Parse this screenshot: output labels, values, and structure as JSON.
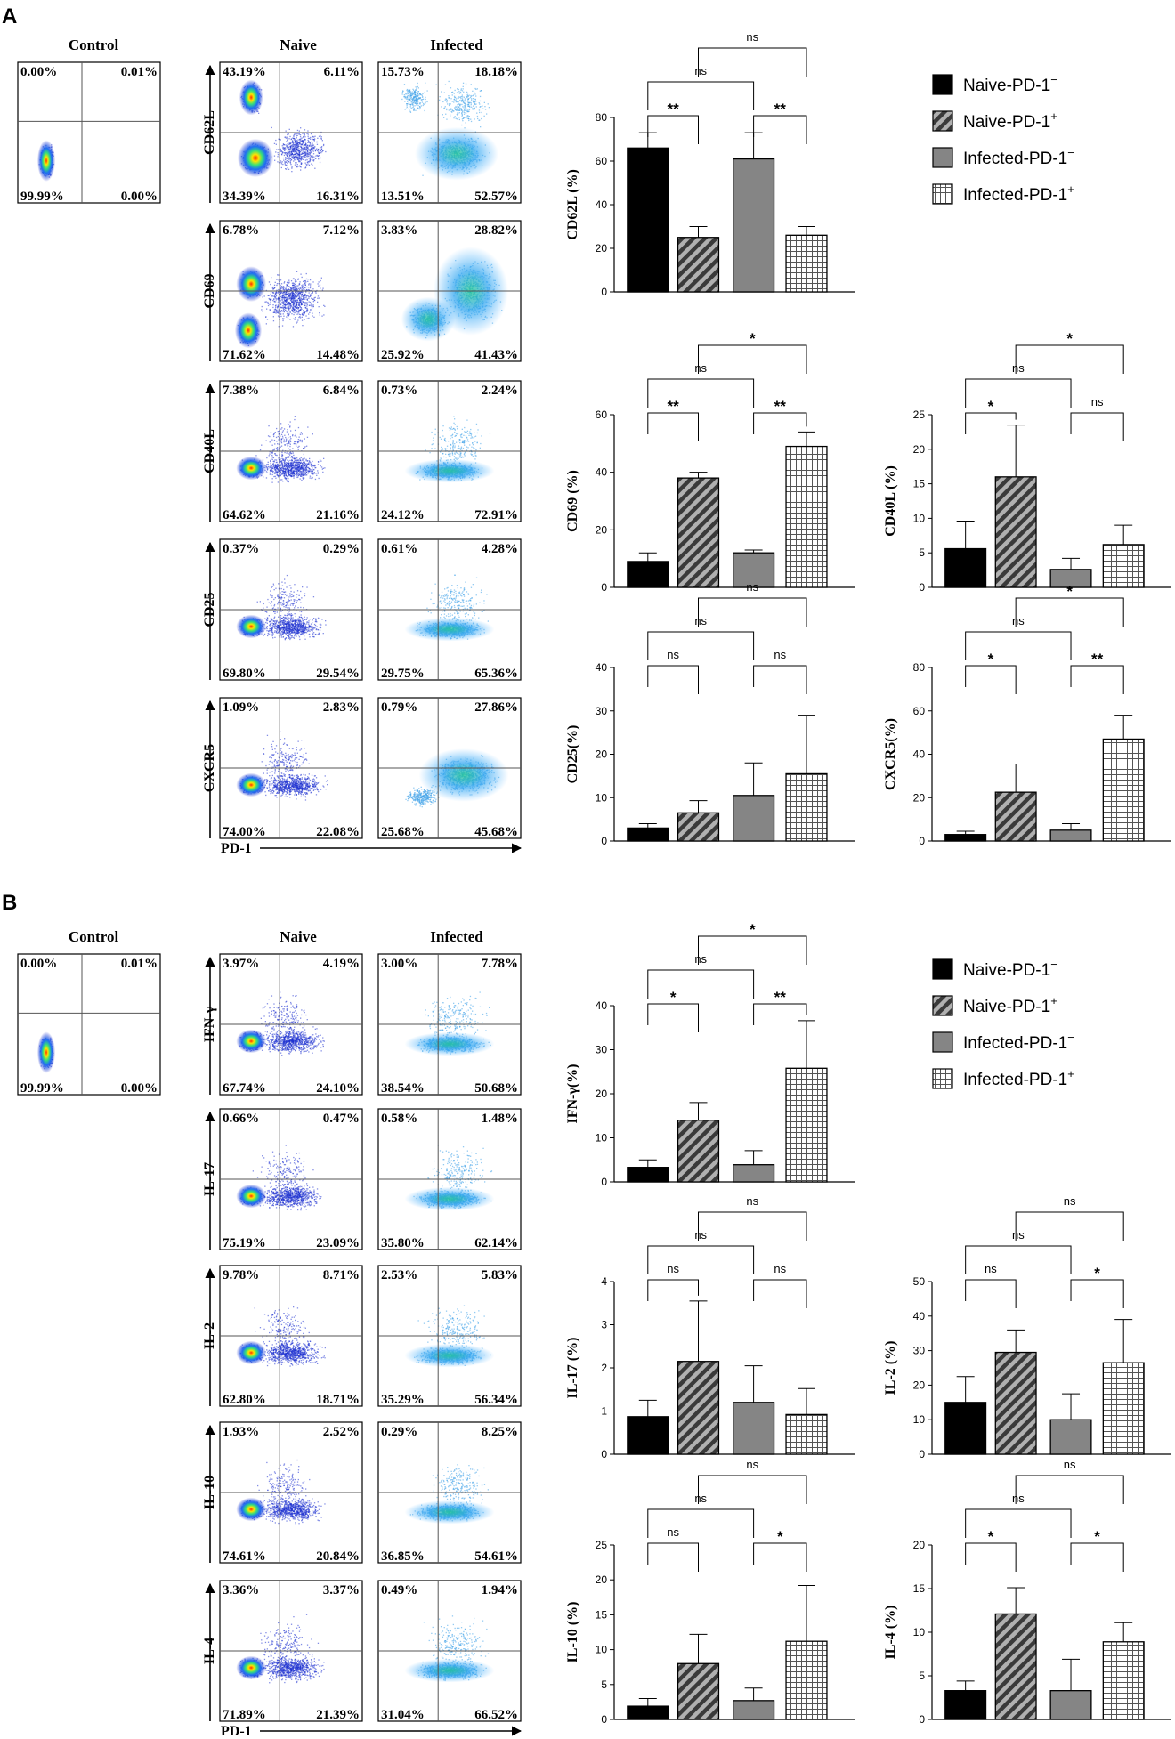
{
  "panels": [
    {
      "letter": "A",
      "control_title": "Control",
      "col_titles": [
        "Naive",
        "Infected"
      ],
      "control_quadrants": [
        "0.00%",
        "0.01%",
        "99.99%",
        "0.00%"
      ],
      "x_marker": "PD-1",
      "flow_rows": [
        {
          "marker": "CD62L",
          "naive": [
            "43.19%",
            "6.11%",
            "34.39%",
            "16.31%"
          ],
          "infected": [
            "15.73%",
            "18.18%",
            "13.51%",
            "52.57%"
          ]
        },
        {
          "marker": "CD69",
          "naive": [
            "6.78%",
            "7.12%",
            "71.62%",
            "14.48%"
          ],
          "infected": [
            "3.83%",
            "28.82%",
            "25.92%",
            "41.43%"
          ]
        },
        {
          "marker": "CD40L",
          "naive": [
            "7.38%",
            "6.84%",
            "64.62%",
            "21.16%"
          ],
          "infected": [
            "0.73%",
            "2.24%",
            "24.12%",
            "72.91%"
          ]
        },
        {
          "marker": "CD25",
          "naive": [
            "0.37%",
            "0.29%",
            "69.80%",
            "29.54%"
          ],
          "infected": [
            "0.61%",
            "4.28%",
            "29.75%",
            "65.36%"
          ]
        },
        {
          "marker": "CXCR5",
          "naive": [
            "1.09%",
            "2.83%",
            "74.00%",
            "22.08%"
          ],
          "infected": [
            "0.79%",
            "27.86%",
            "25.68%",
            "45.68%"
          ]
        }
      ]
    },
    {
      "letter": "B",
      "control_title": "Control",
      "col_titles": [
        "Naive",
        "Infected"
      ],
      "control_quadrants": [
        "0.00%",
        "0.01%",
        "99.99%",
        "0.00%"
      ],
      "x_marker": "PD-1",
      "flow_rows": [
        {
          "marker": "IFN-γ",
          "naive": [
            "3.97%",
            "4.19%",
            "67.74%",
            "24.10%"
          ],
          "infected": [
            "3.00%",
            "7.78%",
            "38.54%",
            "50.68%"
          ]
        },
        {
          "marker": "IL-17",
          "naive": [
            "0.66%",
            "0.47%",
            "75.19%",
            "23.09%"
          ],
          "infected": [
            "0.58%",
            "1.48%",
            "35.80%",
            "62.14%"
          ]
        },
        {
          "marker": "IL-2",
          "naive": [
            "9.78%",
            "8.71%",
            "62.80%",
            "18.71%"
          ],
          "infected": [
            "2.53%",
            "5.83%",
            "35.29%",
            "56.34%"
          ]
        },
        {
          "marker": "IL-10",
          "naive": [
            "1.93%",
            "2.52%",
            "74.61%",
            "20.84%"
          ],
          "infected": [
            "0.29%",
            "8.25%",
            "36.85%",
            "54.61%"
          ]
        },
        {
          "marker": "IL-4",
          "naive": [
            "3.36%",
            "3.37%",
            "71.89%",
            "21.39%"
          ],
          "infected": [
            "0.49%",
            "1.94%",
            "31.04%",
            "66.52%"
          ]
        }
      ]
    }
  ],
  "legend": [
    {
      "name": "Naive-PD-1",
      "sup": "−",
      "fill": "#000000",
      "pattern": "solid"
    },
    {
      "name": "Naive-PD-1",
      "sup": "+",
      "fill": "#555555",
      "pattern": "hatch"
    },
    {
      "name": "Infected-PD-1",
      "sup": "−",
      "fill": "#858585",
      "pattern": "solid"
    },
    {
      "name": "Infected-PD-1",
      "sup": "+",
      "fill": "#ffffff",
      "pattern": "grid"
    }
  ],
  "chart_data": [
    {
      "id": "cd62l",
      "type": "bar",
      "ylabel": "CD62L (%)",
      "categories": [
        "Naive-PD-1−",
        "Naive-PD-1+",
        "Infected-PD-1−",
        "Infected-PD-1+"
      ],
      "values": [
        66,
        25,
        61,
        26
      ],
      "errors": [
        7,
        5,
        12,
        4
      ],
      "ylim": [
        0,
        80
      ],
      "yticks": [
        0,
        20,
        40,
        60,
        80
      ],
      "comparisons": [
        {
          "pair": [
            0,
            1
          ],
          "label": "**"
        },
        {
          "pair": [
            2,
            3
          ],
          "label": "**"
        },
        {
          "pair": [
            0,
            2
          ],
          "label": "ns"
        },
        {
          "pair": [
            1,
            3
          ],
          "label": "ns"
        }
      ]
    },
    {
      "id": "cd69",
      "type": "bar",
      "ylabel": "CD69 (%)",
      "categories": [
        "Naive-PD-1−",
        "Naive-PD-1+",
        "Infected-PD-1−",
        "Infected-PD-1+"
      ],
      "values": [
        9,
        38,
        12,
        49
      ],
      "errors": [
        3,
        2,
        1,
        5
      ],
      "ylim": [
        0,
        60
      ],
      "yticks": [
        0,
        20,
        40,
        60
      ],
      "comparisons": [
        {
          "pair": [
            0,
            1
          ],
          "label": "**"
        },
        {
          "pair": [
            2,
            3
          ],
          "label": "**"
        },
        {
          "pair": [
            0,
            2
          ],
          "label": "ns"
        },
        {
          "pair": [
            1,
            3
          ],
          "label": "*"
        }
      ]
    },
    {
      "id": "cd40l",
      "type": "bar",
      "ylabel": "CD40L (%)",
      "categories": [
        "Naive-PD-1−",
        "Naive-PD-1+",
        "Infected-PD-1−",
        "Infected-PD-1+"
      ],
      "values": [
        5.6,
        16,
        2.6,
        6.2
      ],
      "errors": [
        4,
        7.5,
        1.6,
        2.8
      ],
      "ylim": [
        0,
        25
      ],
      "yticks": [
        0,
        5,
        10,
        15,
        20,
        25
      ],
      "comparisons": [
        {
          "pair": [
            0,
            1
          ],
          "label": "*"
        },
        {
          "pair": [
            2,
            3
          ],
          "label": "ns"
        },
        {
          "pair": [
            0,
            2
          ],
          "label": "ns"
        },
        {
          "pair": [
            1,
            3
          ],
          "label": "*"
        }
      ]
    },
    {
      "id": "cd25",
      "type": "bar",
      "ylabel": "CD25(%)",
      "categories": [
        "Naive-PD-1−",
        "Naive-PD-1+",
        "Infected-PD-1−",
        "Infected-PD-1+"
      ],
      "values": [
        3,
        6.5,
        10.5,
        15.5
      ],
      "errors": [
        1,
        2.8,
        7.5,
        13.5
      ],
      "ylim": [
        0,
        40
      ],
      "yticks": [
        0,
        10,
        20,
        30,
        40
      ],
      "comparisons": [
        {
          "pair": [
            0,
            1
          ],
          "label": "ns"
        },
        {
          "pair": [
            2,
            3
          ],
          "label": "ns"
        },
        {
          "pair": [
            0,
            2
          ],
          "label": "ns"
        },
        {
          "pair": [
            1,
            3
          ],
          "label": "ns"
        }
      ]
    },
    {
      "id": "cxcr5",
      "type": "bar",
      "ylabel": "CXCR5(%)",
      "categories": [
        "Naive-PD-1−",
        "Naive-PD-1+",
        "Infected-PD-1−",
        "Infected-PD-1+"
      ],
      "values": [
        3,
        22.5,
        5,
        47
      ],
      "errors": [
        1.5,
        13,
        3,
        11
      ],
      "ylim": [
        0,
        80
      ],
      "yticks": [
        0,
        20,
        40,
        60,
        80
      ],
      "comparisons": [
        {
          "pair": [
            0,
            1
          ],
          "label": "*"
        },
        {
          "pair": [
            2,
            3
          ],
          "label": "**"
        },
        {
          "pair": [
            0,
            2
          ],
          "label": "ns"
        },
        {
          "pair": [
            1,
            3
          ],
          "label": "*"
        }
      ]
    },
    {
      "id": "ifng",
      "type": "bar",
      "ylabel": "IFN-γ(%)",
      "categories": [
        "Naive-PD-1−",
        "Naive-PD-1+",
        "Infected-PD-1−",
        "Infected-PD-1+"
      ],
      "values": [
        3.3,
        14,
        3.9,
        25.8
      ],
      "errors": [
        1.7,
        4,
        3.2,
        10.8
      ],
      "ylim": [
        0,
        40
      ],
      "yticks": [
        0,
        10,
        20,
        30,
        40
      ],
      "comparisons": [
        {
          "pair": [
            0,
            1
          ],
          "label": "*"
        },
        {
          "pair": [
            2,
            3
          ],
          "label": "**"
        },
        {
          "pair": [
            0,
            2
          ],
          "label": "ns"
        },
        {
          "pair": [
            1,
            3
          ],
          "label": "*"
        }
      ]
    },
    {
      "id": "il17",
      "type": "bar",
      "ylabel": "IL-17 (%)",
      "categories": [
        "Naive-PD-1−",
        "Naive-PD-1+",
        "Infected-PD-1−",
        "Infected-PD-1+"
      ],
      "values": [
        0.87,
        2.15,
        1.2,
        0.92
      ],
      "errors": [
        0.38,
        1.4,
        0.85,
        0.6
      ],
      "ylim": [
        0,
        4
      ],
      "yticks": [
        0,
        1,
        2,
        3,
        4
      ],
      "comparisons": [
        {
          "pair": [
            0,
            1
          ],
          "label": "ns"
        },
        {
          "pair": [
            2,
            3
          ],
          "label": "ns"
        },
        {
          "pair": [
            0,
            2
          ],
          "label": "ns"
        },
        {
          "pair": [
            1,
            3
          ],
          "label": "ns"
        }
      ]
    },
    {
      "id": "il2",
      "type": "bar",
      "ylabel": "IL-2 (%)",
      "categories": [
        "Naive-PD-1−",
        "Naive-PD-1+",
        "Infected-PD-1−",
        "Infected-PD-1+"
      ],
      "values": [
        15,
        29.5,
        10,
        26.5
      ],
      "errors": [
        7.5,
        6.5,
        7.5,
        12.5
      ],
      "ylim": [
        0,
        50
      ],
      "yticks": [
        0,
        10,
        20,
        30,
        40,
        50
      ],
      "comparisons": [
        {
          "pair": [
            0,
            1
          ],
          "label": "ns"
        },
        {
          "pair": [
            2,
            3
          ],
          "label": "*"
        },
        {
          "pair": [
            0,
            2
          ],
          "label": "ns"
        },
        {
          "pair": [
            1,
            3
          ],
          "label": "ns"
        }
      ]
    },
    {
      "id": "il10",
      "type": "bar",
      "ylabel": "IL-10 (%)",
      "categories": [
        "Naive-PD-1−",
        "Naive-PD-1+",
        "Infected-PD-1−",
        "Infected-PD-1+"
      ],
      "values": [
        1.9,
        8,
        2.7,
        11.2
      ],
      "errors": [
        1.1,
        4.2,
        1.8,
        8
      ],
      "ylim": [
        0,
        25
      ],
      "yticks": [
        0,
        5,
        10,
        15,
        20,
        25
      ],
      "comparisons": [
        {
          "pair": [
            0,
            1
          ],
          "label": "ns"
        },
        {
          "pair": [
            2,
            3
          ],
          "label": "*"
        },
        {
          "pair": [
            0,
            2
          ],
          "label": "ns"
        },
        {
          "pair": [
            1,
            3
          ],
          "label": "ns"
        }
      ]
    },
    {
      "id": "il4",
      "type": "bar",
      "ylabel": "IL-4 (%)",
      "categories": [
        "Naive-PD-1−",
        "Naive-PD-1+",
        "Infected-PD-1−",
        "Infected-PD-1+"
      ],
      "values": [
        3.3,
        12.1,
        3.3,
        8.9
      ],
      "errors": [
        1.1,
        3,
        3.6,
        2.2
      ],
      "ylim": [
        0,
        20
      ],
      "yticks": [
        0,
        5,
        10,
        15,
        20
      ],
      "comparisons": [
        {
          "pair": [
            0,
            1
          ],
          "label": "*"
        },
        {
          "pair": [
            2,
            3
          ],
          "label": "*"
        },
        {
          "pair": [
            0,
            2
          ],
          "label": "ns"
        },
        {
          "pair": [
            1,
            3
          ],
          "label": "ns"
        }
      ]
    }
  ]
}
